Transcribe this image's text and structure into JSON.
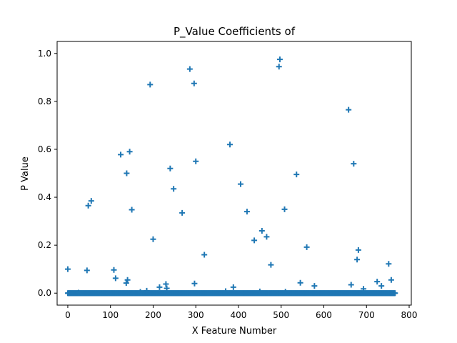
{
  "chart_data": {
    "type": "scatter",
    "title": "P_Value Coefficients of",
    "xlabel": "X Feature Number",
    "ylabel": "P Value",
    "xlim": [
      -25,
      805
    ],
    "ylim": [
      -0.05,
      1.05
    ],
    "x_ticks": [
      0,
      100,
      200,
      300,
      400,
      500,
      600,
      700,
      800
    ],
    "y_ticks": [
      0.0,
      0.2,
      0.4,
      0.6,
      0.8,
      1.0
    ],
    "x_tick_labels": [
      "0",
      "100",
      "200",
      "300",
      "400",
      "500",
      "600",
      "700",
      "800"
    ],
    "y_tick_labels": [
      "0.0",
      "0.2",
      "0.4",
      "0.6",
      "0.8",
      "1.0"
    ],
    "grid": false,
    "marker": "+",
    "color": "#1f77b4",
    "n_features": 768,
    "points": [
      [
        0,
        0.1
      ],
      [
        45,
        0.095
      ],
      [
        48,
        0.365
      ],
      [
        55,
        0.385
      ],
      [
        108,
        0.097
      ],
      [
        112,
        0.062
      ],
      [
        124,
        0.578
      ],
      [
        137,
        0.042
      ],
      [
        138,
        0.5
      ],
      [
        140,
        0.055
      ],
      [
        145,
        0.59
      ],
      [
        150,
        0.348
      ],
      [
        193,
        0.87
      ],
      [
        200,
        0.225
      ],
      [
        215,
        0.025
      ],
      [
        230,
        0.038
      ],
      [
        232,
        0.02
      ],
      [
        240,
        0.52
      ],
      [
        248,
        0.435
      ],
      [
        268,
        0.335
      ],
      [
        286,
        0.935
      ],
      [
        296,
        0.875
      ],
      [
        297,
        0.04
      ],
      [
        300,
        0.55
      ],
      [
        320,
        0.16
      ],
      [
        380,
        0.62
      ],
      [
        388,
        0.025
      ],
      [
        405,
        0.455
      ],
      [
        420,
        0.34
      ],
      [
        437,
        0.22
      ],
      [
        455,
        0.26
      ],
      [
        466,
        0.235
      ],
      [
        476,
        0.118
      ],
      [
        495,
        0.945
      ],
      [
        497,
        0.975
      ],
      [
        508,
        0.35
      ],
      [
        536,
        0.495
      ],
      [
        545,
        0.043
      ],
      [
        560,
        0.192
      ],
      [
        578,
        0.03
      ],
      [
        658,
        0.765
      ],
      [
        664,
        0.035
      ],
      [
        670,
        0.54
      ],
      [
        678,
        0.14
      ],
      [
        681,
        0.18
      ],
      [
        693,
        0.018
      ],
      [
        725,
        0.048
      ],
      [
        735,
        0.03
      ],
      [
        752,
        0.122
      ],
      [
        758,
        0.055
      ],
      [
        25,
        0.002
      ],
      [
        170,
        0.005
      ],
      [
        185,
        0.01
      ],
      [
        370,
        0.008
      ],
      [
        450,
        0.007
      ],
      [
        510,
        0.006
      ]
    ]
  }
}
